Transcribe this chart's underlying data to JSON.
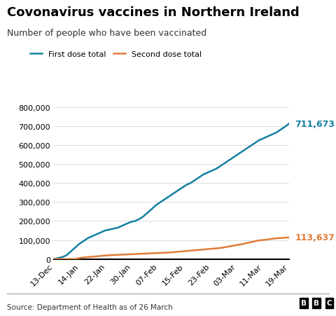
{
  "title": "Covonavirus vaccines in Northern Ireland",
  "subtitle": "Number of people who have been vaccinated",
  "source": "Source: Department of Health as of 26 March",
  "x_labels": [
    "13-Dec",
    "14-Jan",
    "22-Jan",
    "30-Jan",
    "07-Feb",
    "15-Feb",
    "23-Feb",
    "03-Mar",
    "11-Mar",
    "19-Mar"
  ],
  "first_dose": [
    0,
    5000,
    10000,
    20000,
    40000,
    60000,
    80000,
    95000,
    110000,
    120000,
    130000,
    140000,
    150000,
    155000,
    160000,
    165000,
    175000,
    185000,
    195000,
    200000,
    210000,
    225000,
    245000,
    265000,
    285000,
    300000,
    315000,
    330000,
    345000,
    360000,
    375000,
    390000,
    400000,
    415000,
    430000,
    445000,
    455000,
    465000,
    475000,
    490000,
    505000,
    520000,
    535000,
    550000,
    565000,
    580000,
    595000,
    610000,
    625000,
    635000,
    645000,
    655000,
    665000,
    680000,
    695000,
    711673
  ],
  "second_dose": [
    0,
    0,
    0,
    0,
    0,
    0,
    5000,
    8000,
    10000,
    12000,
    14000,
    16000,
    18000,
    20000,
    21000,
    22000,
    23000,
    24000,
    25000,
    26000,
    27000,
    28000,
    29000,
    30000,
    31000,
    32000,
    33000,
    34000,
    36000,
    38000,
    40000,
    42000,
    44000,
    46000,
    48000,
    50000,
    52000,
    54000,
    56000,
    58000,
    62000,
    66000,
    70000,
    74000,
    78000,
    83000,
    88000,
    93000,
    98000,
    100000,
    103000,
    106000,
    109000,
    110000,
    112000,
    113637
  ],
  "first_dose_label": "711,673",
  "second_dose_label": "113,637",
  "first_dose_color": "#1380A1",
  "second_dose_color": "#E07B39",
  "first_dose_legend": "First dose total",
  "second_dose_legend": "Second dose total",
  "ylim": [
    0,
    800000
  ],
  "yticks": [
    0,
    100000,
    200000,
    300000,
    400000,
    500000,
    600000,
    700000,
    800000
  ],
  "background_color": "#ffffff",
  "grid_color": "#dddddd",
  "title_fontsize": 13,
  "subtitle_fontsize": 9,
  "legend_fontsize": 8,
  "tick_label_fontsize": 8,
  "annotation_fontsize": 9
}
